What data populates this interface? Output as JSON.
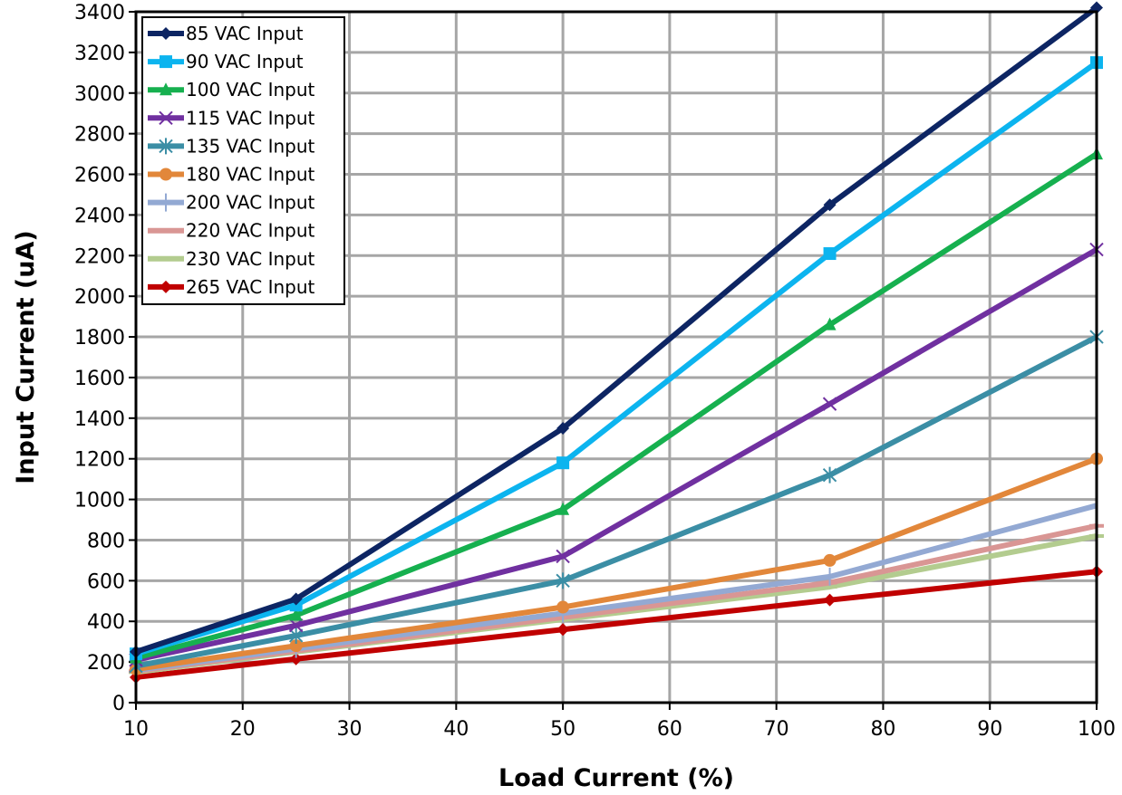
{
  "chart_data": {
    "type": "line",
    "xlabel": "Load Current (%)",
    "ylabel": "Input Current (uA)",
    "xlim": [
      10,
      100
    ],
    "ylim": [
      0,
      3400
    ],
    "x_ticks": [
      10,
      20,
      30,
      40,
      50,
      60,
      70,
      80,
      90,
      100
    ],
    "y_ticks": [
      0,
      200,
      400,
      600,
      800,
      1000,
      1200,
      1400,
      1600,
      1800,
      2000,
      2200,
      2400,
      2600,
      2800,
      3000,
      3200,
      3400
    ],
    "grid": true,
    "legend_position": "top-left",
    "x": [
      10,
      25,
      50,
      75,
      100
    ],
    "series": [
      {
        "name": "85 VAC Input",
        "color": "#0d2563",
        "marker": "diamond",
        "values": [
          250,
          510,
          1350,
          2450,
          3420
        ]
      },
      {
        "name": "90 VAC Input",
        "color": "#0cb4ef",
        "marker": "square",
        "values": [
          240,
          480,
          1180,
          2210,
          3150
        ]
      },
      {
        "name": "100 VAC Input",
        "color": "#16b04f",
        "marker": "triangle",
        "values": [
          220,
          430,
          950,
          1860,
          2700
        ]
      },
      {
        "name": "115 VAC Input",
        "color": "#7030a0",
        "marker": "x",
        "values": [
          210,
          380,
          720,
          1470,
          2230
        ]
      },
      {
        "name": "135 VAC Input",
        "color": "#3b8ea5",
        "marker": "star",
        "values": [
          180,
          330,
          600,
          1120,
          1800
        ]
      },
      {
        "name": "180 VAC Input",
        "color": "#e2873a",
        "marker": "circle",
        "values": [
          165,
          280,
          470,
          700,
          1200
        ]
      },
      {
        "name": "200 VAC Input",
        "color": "#93a9d3",
        "marker": "plus",
        "values": [
          160,
          265,
          440,
          620,
          970
        ]
      },
      {
        "name": "220 VAC Input",
        "color": "#d99694",
        "marker": "dash",
        "values": [
          155,
          255,
          420,
          590,
          870
        ]
      },
      {
        "name": "230 VAC Input",
        "color": "#b3cc8f",
        "marker": "dash",
        "values": [
          150,
          250,
          410,
          570,
          820
        ]
      },
      {
        "name": "265 VAC Input",
        "color": "#c00000",
        "marker": "diamond",
        "values": [
          125,
          215,
          360,
          505,
          645
        ]
      }
    ]
  }
}
